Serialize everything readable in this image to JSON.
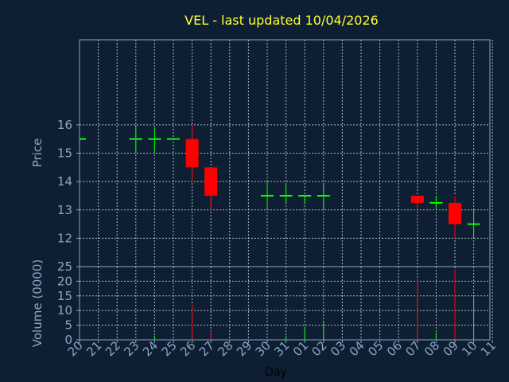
{
  "chart_data": {
    "type": "candlestick",
    "title": "VEL - last updated 10/04/2026",
    "xlabel": "Day",
    "price_panel": {
      "ylabel": "Price",
      "ylim": [
        11,
        19
      ],
      "yticks": [
        12,
        13,
        14,
        15,
        16
      ]
    },
    "volume_panel": {
      "ylabel": "Volume (0000)",
      "ylim": [
        0,
        25
      ],
      "yticks": [
        0,
        5,
        10,
        15,
        20,
        25
      ]
    },
    "categories": [
      "20",
      "21",
      "22",
      "23",
      "24",
      "25",
      "26",
      "27",
      "28",
      "29",
      "30",
      "31",
      "01",
      "02",
      "03",
      "04",
      "05",
      "06",
      "07",
      "08",
      "09",
      "10",
      "11"
    ],
    "candles": [
      {
        "day": "20",
        "open": 15.5,
        "high": 15.5,
        "low": 15.5,
        "close": 15.5,
        "volume": 0
      },
      {
        "day": "23",
        "open": 15.5,
        "high": 16.0,
        "low": 15.0,
        "close": 15.5,
        "volume": 0
      },
      {
        "day": "24",
        "open": 15.5,
        "high": 15.9,
        "low": 15.0,
        "close": 15.5,
        "volume": 1.5
      },
      {
        "day": "25",
        "open": 15.5,
        "high": 15.5,
        "low": 15.5,
        "close": 15.5,
        "volume": 0
      },
      {
        "day": "26",
        "open": 15.5,
        "high": 16.0,
        "low": 14.0,
        "close": 14.5,
        "volume": 12
      },
      {
        "day": "27",
        "open": 14.5,
        "high": 14.5,
        "low": 13.0,
        "close": 13.5,
        "volume": 3
      },
      {
        "day": "30",
        "open": 13.5,
        "high": 14.0,
        "low": 13.0,
        "close": 13.5,
        "volume": 0
      },
      {
        "day": "31",
        "open": 13.5,
        "high": 13.9,
        "low": 13.2,
        "close": 13.5,
        "volume": 1.5
      },
      {
        "day": "01",
        "open": 13.5,
        "high": 13.5,
        "low": 13.2,
        "close": 13.5,
        "volume": 4.5
      },
      {
        "day": "02",
        "open": 13.5,
        "high": 13.9,
        "low": 13.0,
        "close": 13.5,
        "volume": 6.5
      },
      {
        "day": "07",
        "open": 13.5,
        "high": 13.5,
        "low": 13.0,
        "close": 13.25,
        "volume": 20.5
      },
      {
        "day": "08",
        "open": 13.25,
        "high": 13.5,
        "low": 13.0,
        "close": 13.25,
        "volume": 2.5
      },
      {
        "day": "09",
        "open": 13.25,
        "high": 13.5,
        "low": 12.0,
        "close": 12.5,
        "volume": 24
      },
      {
        "day": "10",
        "open": 12.5,
        "high": 13.0,
        "low": 12.0,
        "close": 12.5,
        "volume": 14.5
      }
    ],
    "colors": {
      "up": "#00ff00",
      "down": "#ff0000",
      "grid": "#c8d2dc",
      "axis": "#8aa6c1",
      "background": "#0f1f33",
      "title": "#ffff33"
    }
  }
}
